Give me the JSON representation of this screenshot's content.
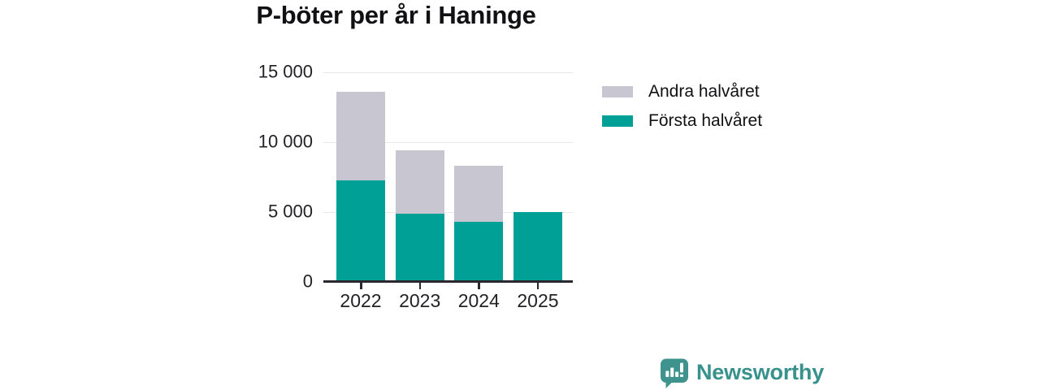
{
  "chart_data": {
    "type": "bar",
    "stacked": true,
    "title": "P-böter per år i Haninge",
    "categories": [
      "2022",
      "2023",
      "2024",
      "2025"
    ],
    "series": [
      {
        "name": "Första halvåret",
        "color": "#00A096",
        "values": [
          7250,
          4900,
          4300,
          5000
        ]
      },
      {
        "name": "Andra halvåret",
        "color": "#C8C6D0",
        "values": [
          6350,
          4500,
          4000,
          0
        ]
      }
    ],
    "ylim": [
      0,
      15000
    ],
    "yticks": [
      0,
      5000,
      10000,
      15000
    ],
    "ytick_labels": [
      "0",
      "5 000",
      "10 000",
      "15 000"
    ],
    "xlabel": "",
    "ylabel": "",
    "grid": true,
    "legend_position": "right",
    "legend_order": [
      "Andra halvåret",
      "Första halvåret"
    ],
    "colors": {
      "axis": "#29282E",
      "grid": "#E8E8EA",
      "text": "#232327",
      "title": "#111114"
    }
  },
  "footer": {
    "brand": "Newsworthy",
    "brand_color": "#37918C",
    "logo_color": "#3F938E"
  }
}
